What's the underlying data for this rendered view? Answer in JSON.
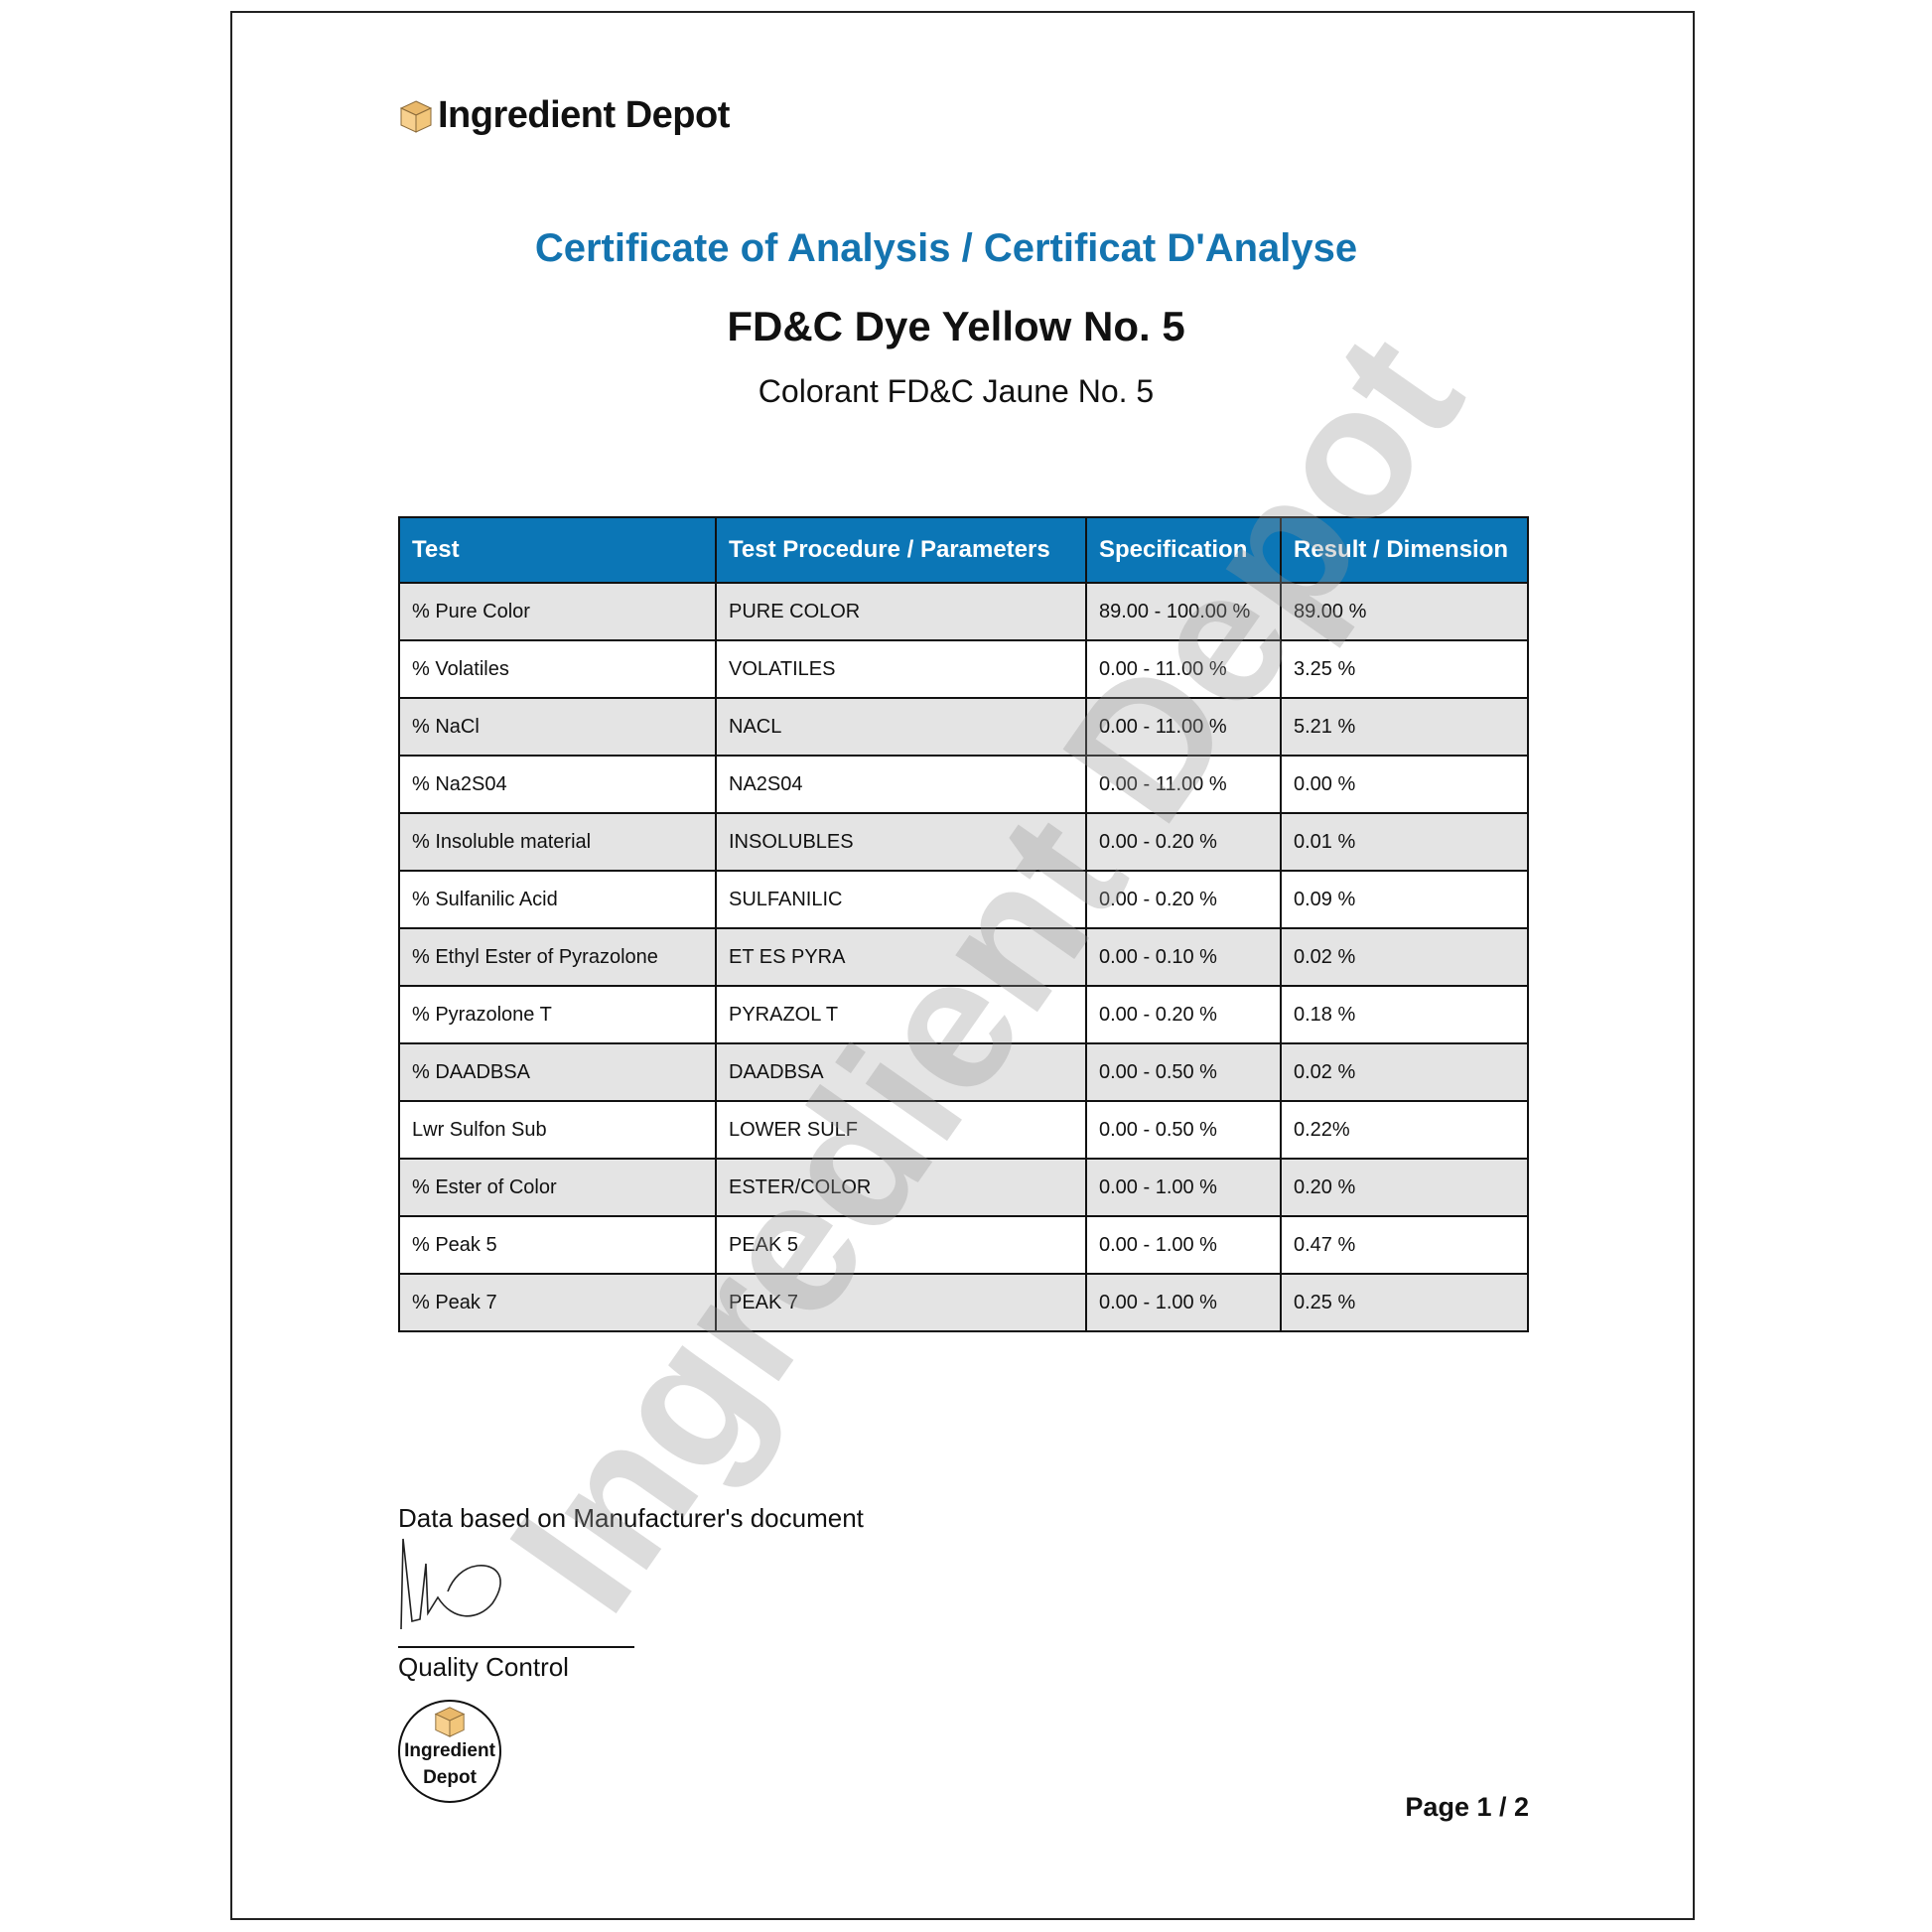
{
  "brand": {
    "name": "Ingredient Depot",
    "box_color": "#f5c97a"
  },
  "header": {
    "title": "Certificate of Analysis / Certificat D'Analyse",
    "product": "FD&C Dye Yellow No. 5",
    "product_fr": "Colorant FD&C Jaune No. 5",
    "title_color": "#1474b0"
  },
  "table": {
    "header_color": "#0b76b6",
    "columns": [
      "Test",
      "Test Procedure / Parameters",
      "Specification",
      "Result / Dimension"
    ],
    "rows": [
      [
        "% Pure Color",
        "PURE COLOR",
        "89.00 - 100.00 %",
        "89.00 %"
      ],
      [
        "% Volatiles",
        "VOLATILES",
        "0.00 - 11.00 %",
        "3.25 %"
      ],
      [
        "% NaCl",
        "NACL",
        "0.00 - 11.00 %",
        "5.21 %"
      ],
      [
        "% Na2S04",
        "NA2S04",
        "0.00 - 11.00 %",
        "0.00 %"
      ],
      [
        "% Insoluble material",
        "INSOLUBLES",
        "0.00 - 0.20 %",
        "0.01 %"
      ],
      [
        "% Sulfanilic Acid",
        "SULFANILIC",
        "0.00 - 0.20 %",
        "0.09 %"
      ],
      [
        "% Ethyl Ester of Pyrazolone",
        "ET ES PYRA",
        "0.00 - 0.10 %",
        "0.02 %"
      ],
      [
        "% Pyrazolone T",
        "PYRAZOL T",
        "0.00 - 0.20 %",
        "0.18 %"
      ],
      [
        "% DAADBSA",
        "DAADBSA",
        "0.00 - 0.50 %",
        "0.02 %"
      ],
      [
        "Lwr Sulfon Sub",
        "LOWER SULF",
        "0.00 - 0.50 %",
        "0.22%"
      ],
      [
        "% Ester of Color",
        "ESTER/COLOR",
        "0.00 - 1.00 %",
        "0.20 %"
      ],
      [
        "% Peak 5",
        "PEAK 5",
        "0.00 - 1.00 %",
        "0.47 %"
      ],
      [
        "% Peak 7",
        "PEAK 7",
        "0.00 - 1.00 %",
        "0.25 %"
      ]
    ]
  },
  "footer": {
    "note": "Data based on Manufacturer's document",
    "signatory": "Quality Control",
    "stamp_line1": "Ingredient",
    "stamp_line2": "Depot",
    "page": "Page 1 / 2"
  },
  "watermark": "Ingredient Depot"
}
